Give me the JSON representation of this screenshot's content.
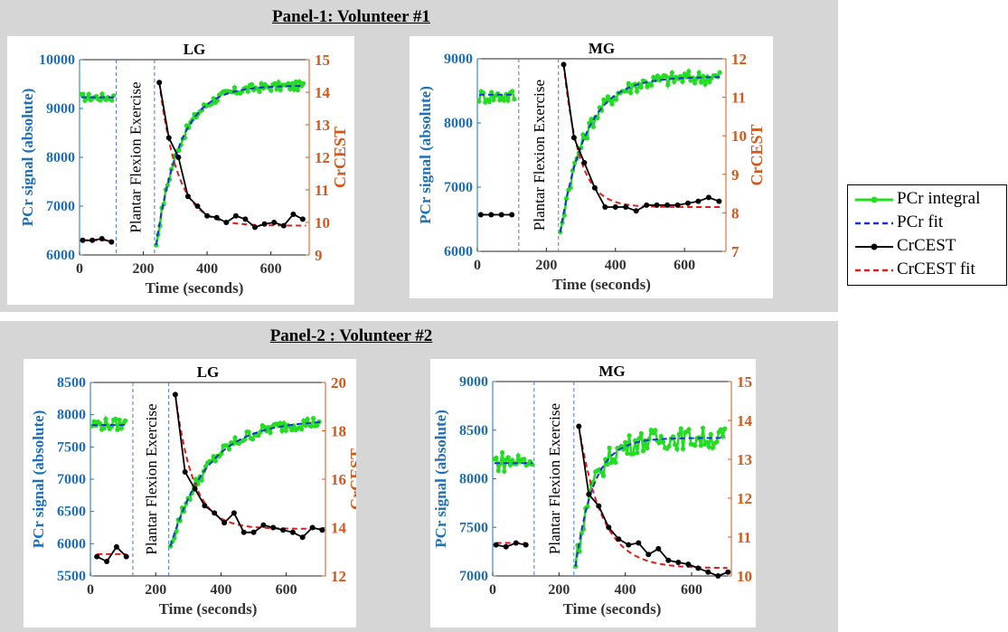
{
  "panels": [
    {
      "title": "Panel-1: Volunteer #1"
    },
    {
      "title": "Panel-2 : Volunteer #2"
    }
  ],
  "legend": {
    "items": [
      {
        "label": "PCr integral",
        "color": "#22dd22",
        "style": "solid-marker"
      },
      {
        "label": "PCr fit",
        "color": "#1a2fd8",
        "style": "dashed"
      },
      {
        "label": "CrCEST",
        "color": "#000000",
        "style": "solid-marker"
      },
      {
        "label": "CrCEST fit",
        "color": "#e31a1a",
        "style": "dashed"
      }
    ]
  },
  "colors": {
    "left_axis": "#1f6fb5",
    "right_axis": "#d2581b",
    "pcr": "#22dd22",
    "pcr_fit": "#1a2fd8",
    "crcest": "#000000",
    "crcest_fit": "#e31a1a",
    "vline": "#4a78c2"
  },
  "chart_data": [
    {
      "id": "v1-lg",
      "type": "line",
      "title": "LG",
      "xlabel": "Time (seconds)",
      "ylabel_left": "PCr signal (absolute)",
      "ylabel_right": "CrCEST",
      "annotation": "Plantar Flexion Exercise",
      "xlim": [
        0,
        720
      ],
      "xticks": [
        0,
        200,
        400,
        600
      ],
      "ylim_left": [
        6000,
        10000
      ],
      "yticks_left": [
        6000,
        7000,
        8000,
        9000,
        10000
      ],
      "ylim_right": [
        9,
        15
      ],
      "yticks_right": [
        9,
        10,
        11,
        12,
        13,
        14,
        15
      ],
      "exercise_lines": [
        115,
        235
      ],
      "pcr_baseline": {
        "t0": 5,
        "t1": 110,
        "mean": 9230,
        "amp": 80
      },
      "pcr_recovery": {
        "t0": 240,
        "t1": 705,
        "y0": 6200,
        "yinf": 9470,
        "tau": 75,
        "noise": 90
      },
      "pcr_fit": {
        "base": 9230,
        "y0": 6200,
        "yinf": 9470,
        "tau": 75
      },
      "crcest": {
        "x": [
          10,
          40,
          70,
          100,
          250,
          280,
          310,
          340,
          370,
          400,
          430,
          460,
          490,
          520,
          550,
          580,
          610,
          640,
          670,
          700
        ],
        "y": [
          9.45,
          9.45,
          9.5,
          9.4,
          14.3,
          12.6,
          12.0,
          10.8,
          10.5,
          10.2,
          10.15,
          10.0,
          10.2,
          10.1,
          9.85,
          9.95,
          10.0,
          9.9,
          10.25,
          10.1
        ]
      },
      "crcest_fit": {
        "base": 9.45,
        "y0": 14.3,
        "yinf": 9.9,
        "tau": 58,
        "t0": 250
      }
    },
    {
      "id": "v1-mg",
      "type": "line",
      "title": "MG",
      "xlabel": "Time (seconds)",
      "ylabel_left": "PCr signal (absolute)",
      "ylabel_right": "CrCEST",
      "annotation": "Plantar Flexion Exercise",
      "xlim": [
        0,
        720
      ],
      "xticks": [
        0,
        200,
        400,
        600
      ],
      "ylim_left": [
        6000,
        9000
      ],
      "yticks_left": [
        6000,
        7000,
        8000,
        9000
      ],
      "ylim_right": [
        7,
        12
      ],
      "yticks_right": [
        7,
        8,
        9,
        10,
        11,
        12
      ],
      "exercise_lines": [
        120,
        235
      ],
      "pcr_baseline": {
        "t0": 5,
        "t1": 110,
        "mean": 8420,
        "amp": 110
      },
      "pcr_recovery": {
        "t0": 240,
        "t1": 705,
        "y0": 6300,
        "yinf": 8720,
        "tau": 75,
        "noise": 110
      },
      "pcr_fit": {
        "base": 8440,
        "y0": 6300,
        "yinf": 8720,
        "tau": 75
      },
      "crcest": {
        "x": [
          10,
          40,
          70,
          100,
          250,
          280,
          310,
          340,
          370,
          400,
          430,
          460,
          490,
          520,
          550,
          580,
          610,
          640,
          670,
          700
        ],
        "y": [
          7.95,
          7.95,
          7.95,
          7.95,
          11.85,
          9.95,
          9.3,
          8.65,
          8.15,
          8.15,
          8.15,
          8.05,
          8.2,
          8.2,
          8.2,
          8.2,
          8.25,
          8.3,
          8.4,
          8.3
        ]
      },
      "crcest_fit": {
        "base": 7.95,
        "y0": 11.85,
        "yinf": 8.15,
        "tau": 45,
        "t0": 250
      }
    },
    {
      "id": "v2-lg",
      "type": "line",
      "title": "LG",
      "xlabel": "Time (seconds)",
      "ylabel_left": "PCr signal (absolute)",
      "ylabel_right": "CrCEST",
      "annotation": "Plantar Flexion Exercise",
      "xlim": [
        0,
        720
      ],
      "xticks": [
        0,
        200,
        400,
        600
      ],
      "ylim_left": [
        5500,
        8500
      ],
      "yticks_left": [
        5500,
        6000,
        6500,
        7000,
        7500,
        8000,
        8500
      ],
      "ylim_right": [
        12,
        20
      ],
      "yticks_right": [
        12,
        14,
        16,
        18,
        20
      ],
      "exercise_lines": [
        130,
        240
      ],
      "pcr_baseline": {
        "t0": 5,
        "t1": 110,
        "mean": 7850,
        "amp": 90
      },
      "pcr_recovery": {
        "t0": 245,
        "t1": 705,
        "y0": 5960,
        "yinf": 7920,
        "tau": 115,
        "noise": 90
      },
      "pcr_fit": {
        "base": 7840,
        "y0": 5960,
        "yinf": 7920,
        "tau": 115
      },
      "crcest": {
        "x": [
          20,
          50,
          80,
          110,
          260,
          290,
          320,
          350,
          380,
          410,
          440,
          470,
          500,
          530,
          560,
          590,
          620,
          650,
          680,
          710
        ],
        "y": [
          12.8,
          12.6,
          13.2,
          12.8,
          19.5,
          16.3,
          15.6,
          14.9,
          14.6,
          14.2,
          14.6,
          13.8,
          13.8,
          14.1,
          14.0,
          13.9,
          13.8,
          13.6,
          14.0,
          13.9
        ]
      },
      "crcest_fit": {
        "base": 12.9,
        "y0": 19.5,
        "yinf": 13.95,
        "tau": 55,
        "t0": 260
      }
    },
    {
      "id": "v2-mg",
      "type": "line",
      "title": "MG",
      "xlabel": "Time (seconds)",
      "ylabel_left": "PCr signal (absolute)",
      "ylabel_right": "CrCEST",
      "annotation": "Plantar Flexion Exercise",
      "xlim": [
        0,
        720
      ],
      "xticks": [
        0,
        200,
        400,
        600
      ],
      "ylim_left": [
        7000,
        9000
      ],
      "yticks_left": [
        7000,
        7500,
        8000,
        8500,
        9000
      ],
      "ylim_right": [
        10,
        15
      ],
      "yticks_right": [
        10,
        11,
        12,
        13,
        14,
        15
      ],
      "exercise_lines": [
        125,
        245
      ],
      "pcr_baseline": {
        "t0": 5,
        "t1": 120,
        "mean": 8180,
        "amp": 110
      },
      "pcr_recovery": {
        "t0": 250,
        "t1": 705,
        "y0": 7100,
        "yinf": 8420,
        "tau": 55,
        "noise": 110
      },
      "pcr_fit": {
        "base": 8160,
        "y0": 7100,
        "yinf": 8420,
        "tau": 55
      },
      "crcest": {
        "x": [
          10,
          40,
          70,
          100,
          260,
          290,
          320,
          350,
          380,
          410,
          440,
          470,
          500,
          530,
          560,
          590,
          620,
          650,
          680,
          710
        ],
        "y": [
          10.8,
          10.75,
          10.85,
          10.8,
          13.85,
          12.1,
          11.8,
          11.25,
          10.95,
          10.8,
          10.85,
          10.55,
          10.7,
          10.4,
          10.35,
          10.3,
          10.2,
          10.1,
          10.0,
          10.1
        ]
      },
      "crcest_fit": {
        "base": 10.85,
        "y0": 13.85,
        "yinf": 10.2,
        "tau": 70,
        "t0": 260
      }
    }
  ]
}
